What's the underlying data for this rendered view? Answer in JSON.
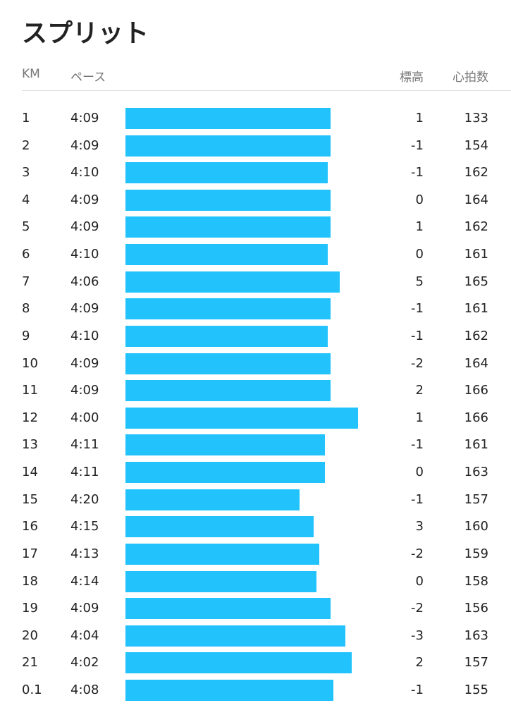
{
  "header": {
    "title": "スプリット"
  },
  "table": {
    "columns": [
      "KM",
      "ペース",
      "標高",
      "心拍数"
    ],
    "rows": [
      [
        "1",
        "4:09",
        1,
        133
      ],
      [
        "2",
        "4:09",
        -1,
        154
      ],
      [
        "3",
        "4:10",
        -1,
        162
      ],
      [
        "4",
        "4:09",
        0,
        164
      ],
      [
        "5",
        "4:09",
        1,
        162
      ],
      [
        "6",
        "4:10",
        0,
        161
      ],
      [
        "7",
        "4:06",
        5,
        165
      ],
      [
        "8",
        "4:09",
        -1,
        161
      ],
      [
        "9",
        "4:10",
        -1,
        162
      ],
      [
        "10",
        "4:09",
        -2,
        164
      ],
      [
        "11",
        "4:09",
        2,
        166
      ],
      [
        "12",
        "4:00",
        1,
        166
      ],
      [
        "13",
        "4:11",
        -1,
        161
      ],
      [
        "14",
        "4:11",
        0,
        163
      ],
      [
        "15",
        "4:20",
        -1,
        157
      ],
      [
        "16",
        "4:15",
        3,
        160
      ],
      [
        "17",
        "4:13",
        -2,
        159
      ],
      [
        "18",
        "4:14",
        0,
        158
      ],
      [
        "19",
        "4:09",
        -2,
        156
      ],
      [
        "20",
        "4:04",
        -3,
        163
      ],
      [
        "21",
        "4:02",
        2,
        157
      ],
      [
        "0.1",
        "4:08",
        -1,
        155
      ]
    ]
  }
}
